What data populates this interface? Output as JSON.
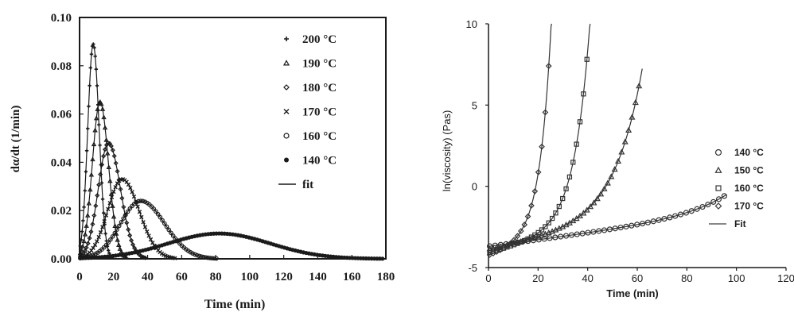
{
  "chart_data": [
    {
      "type": "line",
      "xlabel": "Time (min)",
      "ylabel": "dα/dt (1/min)",
      "xlim": [
        0,
        180
      ],
      "ylim": [
        0,
        0.1
      ],
      "xticks": [
        "0",
        "20",
        "40",
        "60",
        "80",
        "100",
        "120",
        "140",
        "160",
        "180"
      ],
      "yticks": [
        "0.00",
        "0.02",
        "0.04",
        "0.06",
        "0.08",
        "0.10"
      ],
      "legend_position": "top-right",
      "series": [
        {
          "name": "200 °C",
          "marker": "plus",
          "peak_x": 8,
          "peak_y": 0.089,
          "sigma": 3.2,
          "skew": 3.5
        },
        {
          "name": "190 °C",
          "marker": "triangle",
          "peak_x": 12,
          "peak_y": 0.065,
          "sigma": 4.5,
          "skew": 5
        },
        {
          "name": "180 °C",
          "marker": "diamond",
          "peak_x": 17,
          "peak_y": 0.048,
          "sigma": 6,
          "skew": 7
        },
        {
          "name": "170 °C",
          "marker": "cross",
          "peak_x": 25,
          "peak_y": 0.033,
          "sigma": 8.5,
          "skew": 10
        },
        {
          "name": "160 °C",
          "marker": "circle",
          "peak_x": 36,
          "peak_y": 0.024,
          "sigma": 12,
          "skew": 14
        },
        {
          "name": "140 °C",
          "marker": "dot",
          "peak_x": 82,
          "peak_y": 0.0105,
          "sigma": 30,
          "skew": 30
        }
      ],
      "fit_label": "fit"
    },
    {
      "type": "line",
      "xlabel": "Time (min)",
      "ylabel": "ln(viscosity) (Pas)",
      "xlim": [
        0,
        120
      ],
      "ylim": [
        -5,
        10
      ],
      "xticks": [
        "0",
        "20",
        "40",
        "60",
        "80",
        "100",
        "120"
      ],
      "yticks": [
        "-5",
        "0",
        "5",
        "10"
      ],
      "legend_position": "bottom-right",
      "series": [
        {
          "name": "140 °C",
          "marker": "circle",
          "y0": -3.7,
          "slope": 0.02,
          "a": 0.004,
          "b": 0.06,
          "x_end": 96
        },
        {
          "name": "150 °C",
          "marker": "triangle",
          "y0": -3.9,
          "slope": 0.03,
          "a": 0.035,
          "b": 0.09,
          "x_end": 62
        },
        {
          "name": "160 °C",
          "marker": "square",
          "y0": -4.1,
          "slope": 0.04,
          "a": 0.018,
          "b": 0.16,
          "x_end": 41
        },
        {
          "name": "170 °C",
          "marker": "diamond",
          "y0": -4.3,
          "slope": 0.05,
          "a": 0.05,
          "b": 0.22,
          "x_end": 26
        }
      ],
      "fit_label": "Fit"
    }
  ],
  "colors": {
    "ink": "#1a1a1a",
    "fit_right": "#555555"
  }
}
